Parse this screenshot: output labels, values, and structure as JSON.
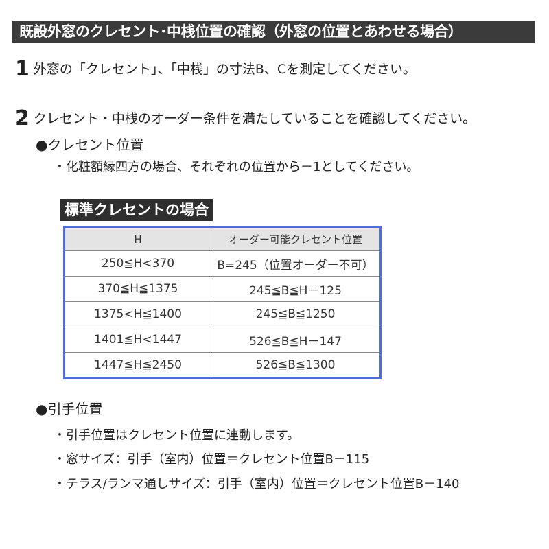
{
  "title": "既設外窓のクレセント･中桟位置の確認（外窓の位置とあわせる場合）",
  "step1": {
    "number": "1",
    "text": "外窓の「クレセント」、「中桟」の寸法B、Cを測定してください。"
  },
  "step2": {
    "number": "2",
    "text": "クレセント・中桟のオーダー条件を満たしていることを確認してください。"
  },
  "crescent": {
    "heading": "●クレセント位置",
    "note": "・化粧額縁四方の場合、それぞれの位置から－1としてください。"
  },
  "table": {
    "heading": "標準クレセントの場合",
    "columns": [
      "H",
      "オーダー可能クレセント位置"
    ],
    "rows": [
      [
        "250≦H<370",
        "B=245（位置オーダー不可）"
      ],
      [
        "370≦H≦1375",
        "245≦B≦H－125"
      ],
      [
        "1375<H≦1400",
        "245≦B≦1250"
      ],
      [
        "1401≦H<1447",
        "526≦B≦H－147"
      ],
      [
        "1447≦H≦2450",
        "526≦B≦1300"
      ]
    ]
  },
  "handle": {
    "heading": "●引手位置",
    "items": [
      "・引手位置はクレセント位置に連動します。",
      "・窓サイズ：引手（室内）位置＝クレセント位置B－115",
      "・テラス/ランマ通しサイズ：引手（室内）位置＝クレセント位置B－140"
    ]
  }
}
